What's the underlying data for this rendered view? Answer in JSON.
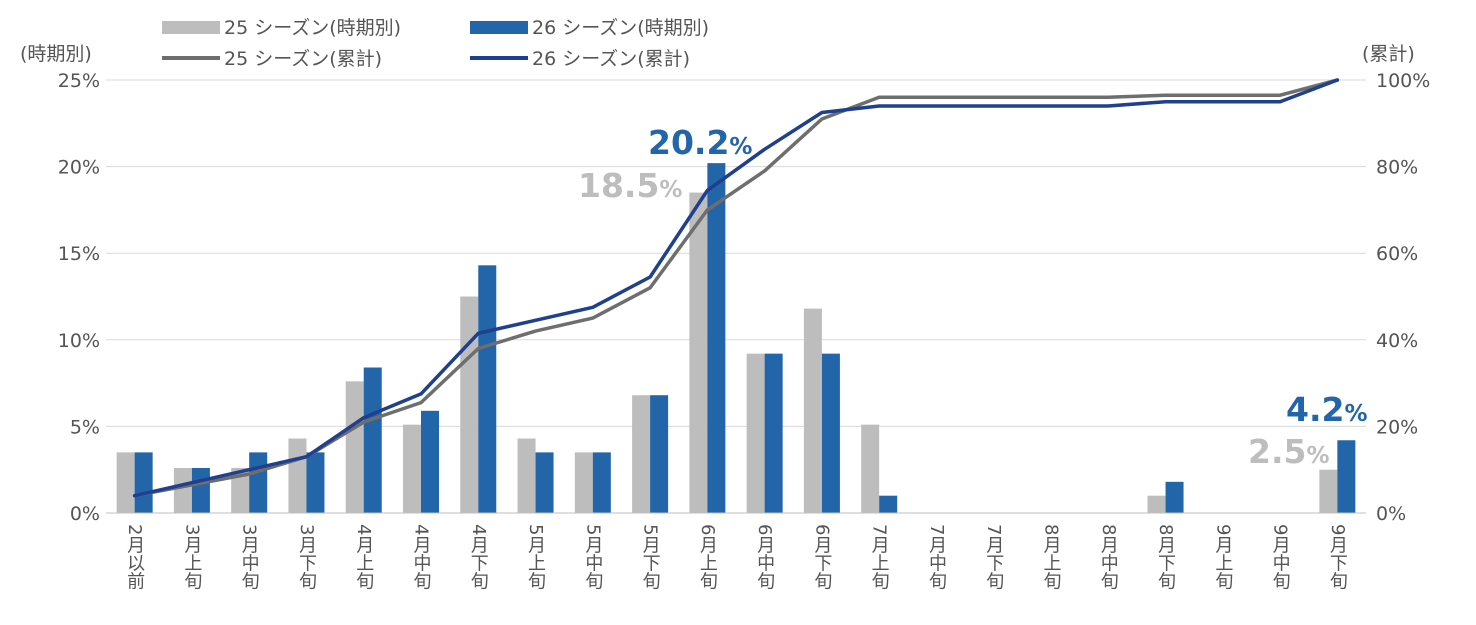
{
  "chart_data": {
    "type": "bar",
    "categories": [
      "2月以前",
      "3月上旬",
      "3月中旬",
      "3月下旬",
      "4月上旬",
      "4月中旬",
      "4月下旬",
      "5月上旬",
      "5月中旬",
      "5月下旬",
      "6月上旬",
      "6月中旬",
      "6月下旬",
      "7月上旬",
      "7月中旬",
      "7月下旬",
      "8月上旬",
      "8月中旬",
      "8月下旬",
      "9月上旬",
      "9月中旬",
      "9月下旬"
    ],
    "left_axis": {
      "title": "(時期別)",
      "ylim": [
        0,
        25
      ],
      "ticks": [
        "0%",
        "5%",
        "10%",
        "15%",
        "20%",
        "25%"
      ]
    },
    "right_axis": {
      "title": "(累計)",
      "ylim": [
        0,
        100
      ],
      "ticks": [
        "0%",
        "20%",
        "40%",
        "60%",
        "80%",
        "100%"
      ]
    },
    "grid": true,
    "legend_position": "top",
    "series": [
      {
        "name": "25 シーズン(時期別)",
        "type": "bar",
        "axis": "left",
        "color": "#bdbdbd",
        "values": [
          3.5,
          2.6,
          2.6,
          4.3,
          7.6,
          5.1,
          12.5,
          4.3,
          3.5,
          6.8,
          18.5,
          9.2,
          11.8,
          5.1,
          0,
          0,
          0,
          0,
          1.0,
          0,
          0,
          2.5
        ]
      },
      {
        "name": "26 シーズン(時期別)",
        "type": "bar",
        "axis": "left",
        "color": "#2265a9",
        "values": [
          3.5,
          2.6,
          3.5,
          3.5,
          8.4,
          5.9,
          14.3,
          3.5,
          3.5,
          6.8,
          20.2,
          9.2,
          9.2,
          1.0,
          0,
          0,
          0,
          0,
          1.8,
          0,
          0,
          4.2
        ]
      },
      {
        "name": "25 シーズン(累計)",
        "type": "line",
        "axis": "right",
        "color": "#6e6e6e",
        "values": [
          4,
          6.5,
          9,
          13,
          21,
          25.5,
          38,
          42,
          45,
          52,
          70,
          79,
          91,
          96,
          96,
          96,
          96,
          96,
          96.5,
          96.5,
          96.5,
          100
        ]
      },
      {
        "name": "26 シーズン(累計)",
        "type": "line",
        "axis": "right",
        "color": "#1f3f8f",
        "values": [
          4,
          7,
          10,
          13,
          22,
          27.5,
          41.5,
          44.5,
          47.5,
          54.5,
          74.5,
          84,
          92.5,
          94,
          94,
          94,
          94,
          94,
          95,
          95,
          95,
          100
        ]
      }
    ],
    "annotations": [
      {
        "category": "6月上旬",
        "series": "26 シーズン(時期別)",
        "number": "20.2",
        "unit": "%",
        "color": "#2265a9"
      },
      {
        "category": "6月上旬",
        "series": "25 シーズン(時期別)",
        "number": "18.5",
        "unit": "%",
        "color": "#bdbdbd"
      },
      {
        "category": "9月下旬",
        "series": "26 シーズン(時期別)",
        "number": "4.2",
        "unit": "%",
        "color": "#2265a9"
      },
      {
        "category": "9月下旬",
        "series": "25 シーズン(時期別)",
        "number": "2.5",
        "unit": "%",
        "color": "#bdbdbd"
      }
    ]
  }
}
